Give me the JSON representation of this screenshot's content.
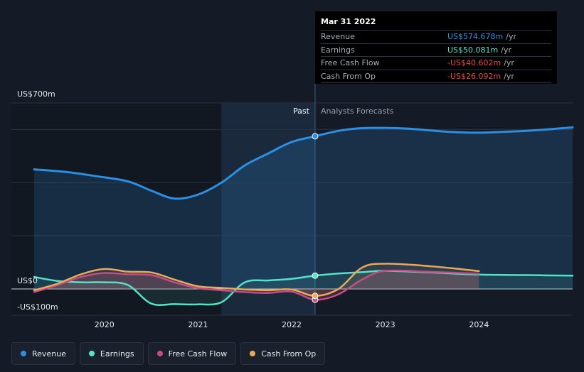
{
  "chart_data": {
    "type": "line",
    "y_axis": {
      "top_label": "US$700m",
      "zero_label": "US$0",
      "bottom_label": "-US$100m",
      "ylim": [
        -100,
        700
      ]
    },
    "x_ticks": [
      "2020",
      "2021",
      "2022",
      "2023",
      "2024"
    ],
    "regions": {
      "past_label": "Past",
      "forecast_label": "Analysts Forecasts"
    },
    "series": [
      {
        "name": "Revenue",
        "color": "#2d8fe3",
        "points": [
          [
            2019.25,
            450
          ],
          [
            2019.6,
            440
          ],
          [
            2019.9,
            425
          ],
          [
            2020.25,
            405
          ],
          [
            2020.5,
            370
          ],
          [
            2020.75,
            340
          ],
          [
            2021.0,
            355
          ],
          [
            2021.25,
            400
          ],
          [
            2021.5,
            465
          ],
          [
            2021.75,
            510
          ],
          [
            2022.0,
            553
          ],
          [
            2022.25,
            574.7
          ],
          [
            2022.5,
            595
          ],
          [
            2022.75,
            605
          ],
          [
            2023.0,
            606
          ],
          [
            2023.25,
            603
          ],
          [
            2023.5,
            596
          ],
          [
            2023.75,
            590
          ],
          [
            2024.0,
            588
          ],
          [
            2024.25,
            591
          ],
          [
            2024.6,
            597
          ],
          [
            2025.0,
            608
          ]
        ]
      },
      {
        "name": "Earnings",
        "color": "#58e1c9",
        "points": [
          [
            2019.25,
            45
          ],
          [
            2019.5,
            30
          ],
          [
            2019.75,
            25
          ],
          [
            2020.0,
            25
          ],
          [
            2020.25,
            15
          ],
          [
            2020.5,
            -55
          ],
          [
            2020.75,
            -57
          ],
          [
            2021.0,
            -58
          ],
          [
            2021.25,
            -50
          ],
          [
            2021.5,
            25
          ],
          [
            2021.75,
            32
          ],
          [
            2022.0,
            38
          ],
          [
            2022.25,
            50.1
          ],
          [
            2022.5,
            58
          ],
          [
            2022.75,
            63
          ],
          [
            2023.0,
            68
          ],
          [
            2023.5,
            62
          ],
          [
            2024.0,
            54
          ],
          [
            2024.5,
            52
          ],
          [
            2025.0,
            50
          ]
        ]
      },
      {
        "name": "Free Cash Flow",
        "color": "#c54d86",
        "points": [
          [
            2019.25,
            -12
          ],
          [
            2019.5,
            15
          ],
          [
            2019.75,
            45
          ],
          [
            2020.0,
            60
          ],
          [
            2020.25,
            55
          ],
          [
            2020.5,
            52
          ],
          [
            2020.75,
            25
          ],
          [
            2021.0,
            3
          ],
          [
            2021.25,
            -5
          ],
          [
            2021.5,
            -12
          ],
          [
            2021.75,
            -15
          ],
          [
            2022.0,
            -10
          ],
          [
            2022.25,
            -40.6
          ],
          [
            2022.5,
            -20
          ],
          [
            2022.75,
            35
          ],
          [
            2023.0,
            68
          ],
          [
            2023.5,
            64
          ],
          [
            2024.0,
            57
          ]
        ]
      },
      {
        "name": "Cash From Op",
        "color": "#e8a95a",
        "points": [
          [
            2019.25,
            -5
          ],
          [
            2019.5,
            20
          ],
          [
            2019.75,
            55
          ],
          [
            2020.0,
            75
          ],
          [
            2020.25,
            65
          ],
          [
            2020.5,
            62
          ],
          [
            2020.75,
            35
          ],
          [
            2021.0,
            10
          ],
          [
            2021.25,
            4
          ],
          [
            2021.5,
            -2
          ],
          [
            2021.75,
            -5
          ],
          [
            2022.0,
            -2
          ],
          [
            2022.25,
            -26.1
          ],
          [
            2022.5,
            0
          ],
          [
            2022.75,
            80
          ],
          [
            2023.0,
            95
          ],
          [
            2023.5,
            85
          ],
          [
            2024.0,
            67
          ]
        ]
      }
    ],
    "tooltip": {
      "date": "Mar 31 2022",
      "rows": [
        {
          "name": "Revenue",
          "value": "US$574.678m",
          "unit": "/yr",
          "color": "#2d8fe3"
        },
        {
          "name": "Earnings",
          "value": "US$50.081m",
          "unit": "/yr",
          "color": "#58e1c9"
        },
        {
          "name": "Free Cash Flow",
          "value": "-US$40.602m",
          "unit": "/yr",
          "color": "#e24b4b"
        },
        {
          "name": "Cash From Op",
          "value": "-US$26.092m",
          "unit": "/yr",
          "color": "#e24b4b"
        }
      ]
    },
    "legend": [
      {
        "name": "Revenue",
        "color": "#2d8fe3"
      },
      {
        "name": "Earnings",
        "color": "#58e1c9"
      },
      {
        "name": "Free Cash Flow",
        "color": "#c54d86"
      },
      {
        "name": "Cash From Op",
        "color": "#e8a95a"
      }
    ],
    "divider_x": 2022.25,
    "highlight_start_x": 2021.25
  }
}
